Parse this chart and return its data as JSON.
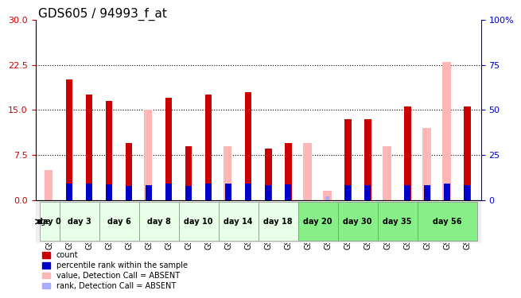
{
  "title": "GDS605 / 94993_f_at",
  "samples": [
    "GSM13803",
    "GSM13836",
    "GSM13810",
    "GSM13841",
    "GSM13814",
    "GSM13845",
    "GSM13815",
    "GSM13846",
    "GSM13806",
    "GSM13837",
    "GSM13807",
    "GSM13838",
    "GSM13808",
    "GSM13839",
    "GSM13809",
    "GSM13840",
    "GSM13811",
    "GSM13842",
    "GSM13812",
    "GSM13843",
    "GSM13813",
    "GSM13844"
  ],
  "red_values": [
    0,
    20,
    17.5,
    16.5,
    9.5,
    0,
    17,
    9,
    17.5,
    0,
    18,
    8.5,
    9.5,
    0,
    0,
    13.5,
    13.5,
    0,
    15.5,
    0,
    0,
    15.5
  ],
  "pink_values": [
    5,
    0,
    0,
    0,
    0,
    15,
    0,
    0,
    0,
    9,
    0,
    0,
    0,
    9.5,
    1.5,
    0,
    0,
    9,
    0,
    12,
    23,
    0
  ],
  "blue_ranks": [
    0,
    8.5,
    8.5,
    8.0,
    7.0,
    7.5,
    8.5,
    7.0,
    8.5,
    8.5,
    8.5,
    7.5,
    8.0,
    0,
    0,
    7.5,
    7.5,
    0,
    7.5,
    7.5,
    8.5,
    7.5
  ],
  "light_blue_ranks": [
    0,
    0,
    0,
    0,
    0,
    0,
    0,
    0,
    0,
    0,
    0,
    0,
    0,
    0,
    2,
    0,
    0,
    0,
    0,
    0,
    8.5,
    0
  ],
  "age_groups": [
    {
      "label": "day 0",
      "start": 0,
      "end": 1,
      "color": "#ccffcc"
    },
    {
      "label": "day 3",
      "start": 1,
      "end": 3,
      "color": "#ccffcc"
    },
    {
      "label": "day 6",
      "start": 3,
      "end": 5,
      "color": "#ccffcc"
    },
    {
      "label": "day 8",
      "start": 5,
      "end": 7,
      "color": "#ccffcc"
    },
    {
      "label": "day 10",
      "start": 7,
      "end": 9,
      "color": "#ccffcc"
    },
    {
      "label": "day 14",
      "start": 9,
      "end": 11,
      "color": "#ccffcc"
    },
    {
      "label": "day 18",
      "start": 11,
      "end": 13,
      "color": "#ccffcc"
    },
    {
      "label": "day 20",
      "start": 13,
      "end": 15,
      "color": "#aaffaa"
    },
    {
      "label": "day 30",
      "start": 15,
      "end": 17,
      "color": "#aaffaa"
    },
    {
      "label": "day 35",
      "start": 17,
      "end": 19,
      "color": "#aaffaa"
    },
    {
      "label": "day 56",
      "start": 19,
      "end": 22,
      "color": "#aaffaa"
    }
  ],
  "ylim_left": [
    0,
    30
  ],
  "ylim_right": [
    0,
    100
  ],
  "yticks_left": [
    0,
    7.5,
    15,
    22.5,
    30
  ],
  "yticks_right": [
    0,
    25,
    50,
    75,
    100
  ],
  "bar_width": 0.35,
  "red_color": "#cc0000",
  "pink_color": "#ffb6b6",
  "blue_color": "#0000cc",
  "light_blue_color": "#aaaaff",
  "bg_color": "#ffffff",
  "plot_bg": "#ffffff",
  "grid_color": "#000000",
  "tick_label_color_left": "#cc0000",
  "tick_label_color_right": "#0000cc",
  "title_fontsize": 11,
  "tick_fontsize": 8,
  "label_fontsize": 8
}
